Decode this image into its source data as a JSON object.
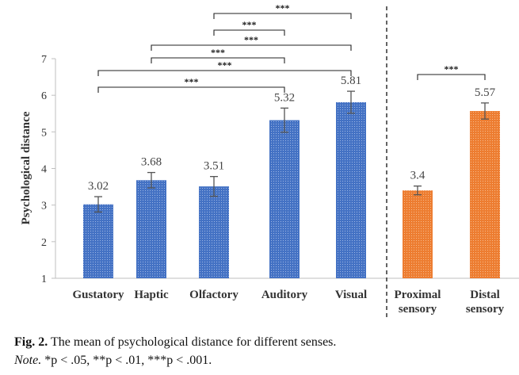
{
  "chart_data": {
    "type": "bar",
    "ylabel": "Psychological distance",
    "ylim": [
      1,
      7
    ],
    "yticks": [
      1,
      2,
      3,
      4,
      5,
      6,
      7
    ],
    "colors": {
      "five_senses": "#4472C4",
      "proximal_distal": "#ED7D31"
    },
    "categories": [
      {
        "label": [
          "Gustatory"
        ],
        "value": 3.02,
        "value_label": "3.02",
        "error": 0.21,
        "group": "five_senses"
      },
      {
        "label": [
          "Haptic"
        ],
        "value": 3.68,
        "value_label": "3.68",
        "error": 0.21,
        "group": "five_senses"
      },
      {
        "label": [
          "Olfactory"
        ],
        "value": 3.51,
        "value_label": "3.51",
        "error": 0.27,
        "group": "five_senses"
      },
      {
        "label": [
          "Auditory"
        ],
        "value": 5.32,
        "value_label": "5.32",
        "error": 0.33,
        "group": "five_senses"
      },
      {
        "label": [
          "Visual"
        ],
        "value": 5.81,
        "value_label": "5.81",
        "error": 0.3,
        "group": "five_senses"
      },
      {
        "label": [
          "Proximal",
          "sensory"
        ],
        "value": 3.4,
        "value_label": "3.4",
        "error": 0.12,
        "group": "proximal_distal"
      },
      {
        "label": [
          "Distal",
          "sensory"
        ],
        "value": 5.57,
        "value_label": "5.57",
        "error": 0.22,
        "group": "proximal_distal"
      }
    ],
    "significance": [
      {
        "from": 2,
        "to": 4,
        "label": "***"
      },
      {
        "from": 2,
        "to": 3,
        "label": "***"
      },
      {
        "from": 1,
        "to": 4,
        "label": "***"
      },
      {
        "from": 1,
        "to": 3,
        "label": "***"
      },
      {
        "from": 0,
        "to": 4,
        "label": "***"
      },
      {
        "from": 0,
        "to": 3,
        "label": "***"
      },
      {
        "from": 5,
        "to": 6,
        "label": "***"
      }
    ],
    "divider_after_index": 4
  },
  "caption": {
    "figure_number": "Fig. 2.",
    "text": "The mean of psychological distance for different senses.",
    "note_label": "Note.",
    "note_text": "*p < .05, **p < .01, ***p < .001."
  }
}
